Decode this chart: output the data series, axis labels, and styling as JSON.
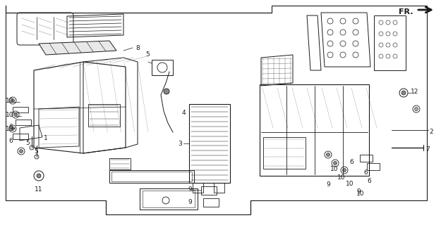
{
  "background_color": "#ffffff",
  "diagram_color": "#1a1a1a",
  "fig_width": 6.25,
  "fig_height": 3.2,
  "dpi": 100,
  "fr_label": "FR.",
  "label_fontsize": 6.5
}
